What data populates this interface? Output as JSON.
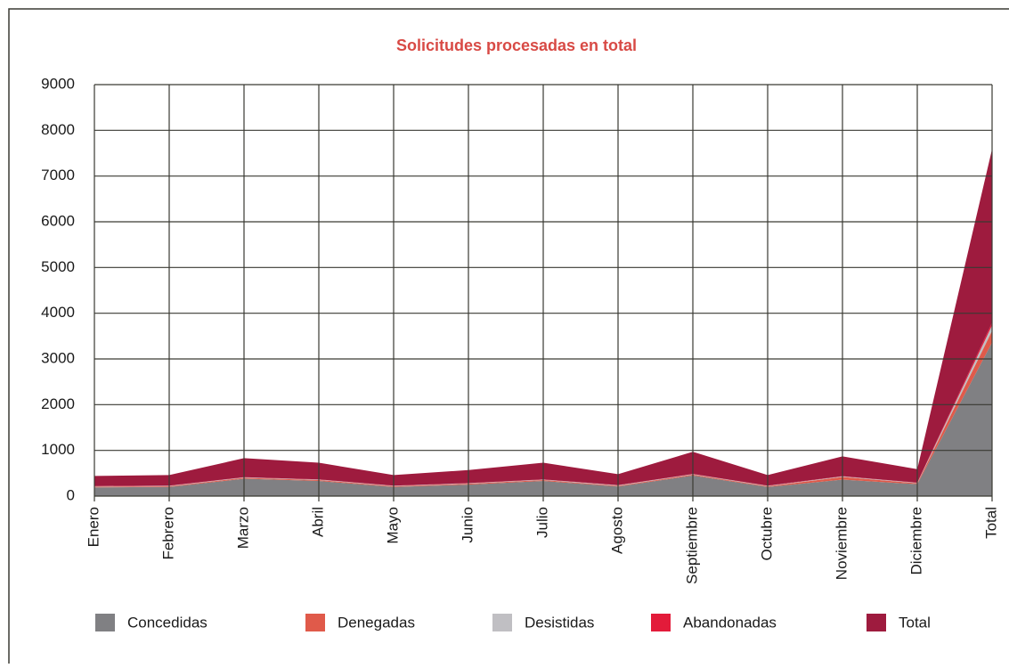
{
  "chart_data": {
    "type": "stacked_area",
    "title": "Solicitudes procesadas en total",
    "categories": [
      "Enero",
      "Febrero",
      "Marzo",
      "Abril",
      "Mayo",
      "Junio",
      "Julio",
      "Agosto",
      "Septiembre",
      "Octubre",
      "Noviembre",
      "Diciembre",
      "Total"
    ],
    "series": [
      {
        "name": "Concedidas",
        "color": "#808083",
        "values": [
          190,
          200,
          380,
          330,
          200,
          250,
          330,
          210,
          450,
          200,
          360,
          260,
          3360
        ]
      },
      {
        "name": "Denegadas",
        "color": "#e05a4a",
        "values": [
          15,
          15,
          20,
          20,
          15,
          20,
          20,
          15,
          20,
          15,
          60,
          20,
          255
        ]
      },
      {
        "name": "Desistidas",
        "color": "#c0bfc3",
        "values": [
          10,
          10,
          10,
          10,
          10,
          10,
          10,
          10,
          10,
          10,
          10,
          10,
          120
        ]
      },
      {
        "name": "Abandonadas",
        "color": "#e31b3a",
        "values": [
          5,
          5,
          5,
          5,
          5,
          5,
          5,
          5,
          5,
          5,
          5,
          5,
          60
        ]
      },
      {
        "name": "Total",
        "color": "#9e1b3e",
        "values": [
          220,
          230,
          415,
          365,
          230,
          285,
          365,
          240,
          485,
          230,
          435,
          295,
          3795
        ]
      }
    ],
    "ylim": [
      0,
      9000
    ],
    "yticks": [
      0,
      1000,
      2000,
      3000,
      4000,
      5000,
      6000,
      7000,
      8000,
      9000
    ],
    "grid": true,
    "legend": "bottom"
  }
}
